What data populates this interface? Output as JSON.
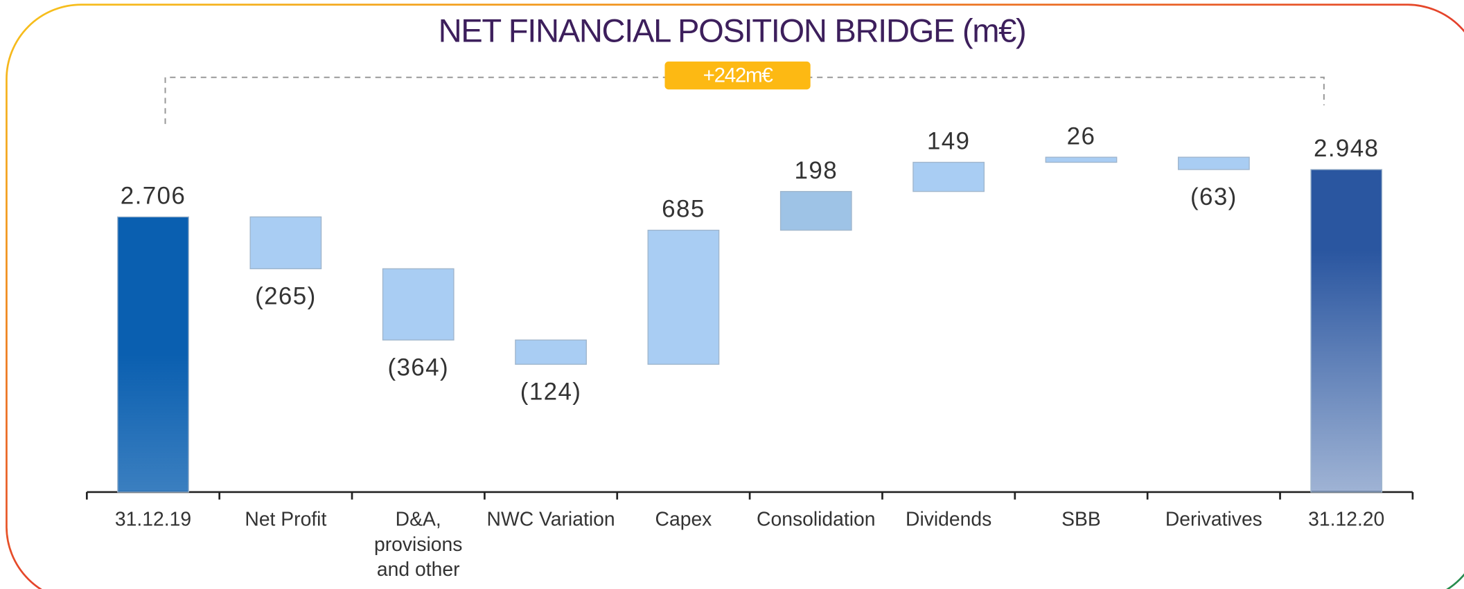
{
  "chart_data": {
    "type": "waterfall",
    "title": "NET FINANCIAL POSITION BRIDGE (m€)",
    "annotation": "+242m€",
    "categories": [
      "31.12.19",
      "Net Profit",
      "D&A, provisions and other",
      "NWC Variation",
      "Capex",
      "Consolidation",
      "Dividends",
      "SBB",
      "Derivatives",
      "31.12.20"
    ],
    "measure": [
      "absolute",
      "relative",
      "relative",
      "relative",
      "relative",
      "relative",
      "relative",
      "relative",
      "relative",
      "total"
    ],
    "values": [
      2706,
      -265,
      -364,
      -124,
      685,
      198,
      149,
      26,
      -63,
      2948
    ],
    "value_labels": [
      "2.706",
      "(265)",
      "(364)",
      "(124)",
      "685",
      "198",
      "149",
      "26",
      "(63)",
      "2.948"
    ],
    "colors": [
      "#0a5fb0",
      "#a9cdf3",
      "#a9cdf3",
      "#a9cdf3",
      "#a9cdf3",
      "#9ec3e6",
      "#a9cdf3",
      "#a9cdf3",
      "#a9cdf3",
      "#2a56a0"
    ],
    "ylim": [
      1300,
      3100
    ]
  }
}
